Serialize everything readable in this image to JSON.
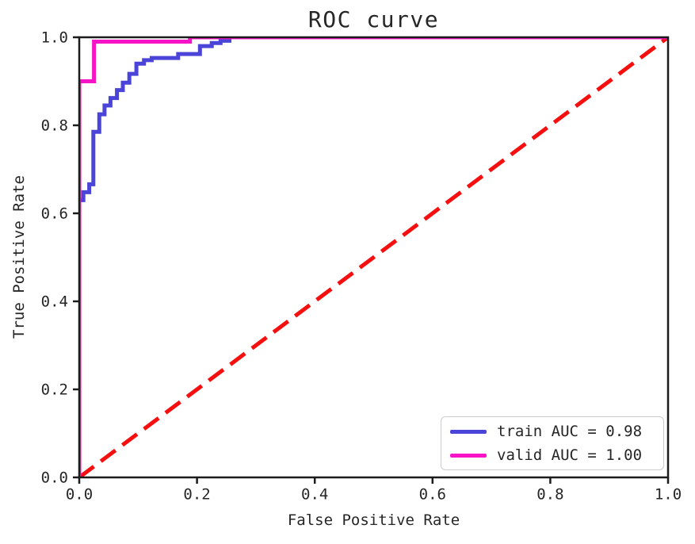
{
  "style": {
    "background": "#ffffff",
    "text_color": "#262626",
    "axis_color": "#1c1c1c",
    "legend_border_color": "#cccccc"
  },
  "chart_data": {
    "type": "line",
    "plot_kind": "roc-curve",
    "title": "ROC curve",
    "xlabel": "False Positive Rate",
    "ylabel": "True Positive Rate",
    "xlim": [
      0,
      1
    ],
    "ylim": [
      0,
      1
    ],
    "xtick_labels": [
      "0.0",
      "0.2",
      "0.4",
      "0.6",
      "0.8",
      "1.0"
    ],
    "ytick_labels": [
      "0.0",
      "0.2",
      "0.4",
      "0.6",
      "0.8",
      "1.0"
    ],
    "grid": false,
    "legend_position": "lower right",
    "legend_entries": [
      {
        "label": "train AUC = 0.98",
        "color": "#4a45d8"
      },
      {
        "label": "valid AUC = 1.00",
        "color": "#f614c6"
      }
    ],
    "series": [
      {
        "name": "chance-diagonal",
        "color": "#f50f0f",
        "dash": [
          23,
          11
        ],
        "width": 5,
        "points": [
          [
            0,
            0
          ],
          [
            1,
            1
          ]
        ]
      },
      {
        "name": "train",
        "auc": 0.98,
        "color": "#4a45d8",
        "dash": null,
        "width": 5,
        "points": [
          [
            0.0,
            0.0
          ],
          [
            0.0,
            0.63
          ],
          [
            0.007,
            0.63
          ],
          [
            0.007,
            0.648
          ],
          [
            0.017,
            0.648
          ],
          [
            0.017,
            0.666
          ],
          [
            0.024,
            0.666
          ],
          [
            0.024,
            0.785
          ],
          [
            0.034,
            0.785
          ],
          [
            0.034,
            0.825
          ],
          [
            0.043,
            0.825
          ],
          [
            0.043,
            0.845
          ],
          [
            0.053,
            0.845
          ],
          [
            0.053,
            0.862
          ],
          [
            0.064,
            0.862
          ],
          [
            0.064,
            0.88
          ],
          [
            0.074,
            0.88
          ],
          [
            0.074,
            0.897
          ],
          [
            0.085,
            0.897
          ],
          [
            0.085,
            0.917
          ],
          [
            0.097,
            0.917
          ],
          [
            0.097,
            0.94
          ],
          [
            0.11,
            0.94
          ],
          [
            0.11,
            0.948
          ],
          [
            0.123,
            0.948
          ],
          [
            0.123,
            0.953
          ],
          [
            0.168,
            0.953
          ],
          [
            0.168,
            0.962
          ],
          [
            0.205,
            0.962
          ],
          [
            0.205,
            0.98
          ],
          [
            0.225,
            0.98
          ],
          [
            0.225,
            0.987
          ],
          [
            0.24,
            0.987
          ],
          [
            0.24,
            0.992
          ],
          [
            0.255,
            0.992
          ],
          [
            0.255,
            1.0
          ],
          [
            1.0,
            1.0
          ]
        ]
      },
      {
        "name": "valid",
        "auc": 1.0,
        "color": "#f614c6",
        "dash": null,
        "width": 5,
        "points": [
          [
            0.0,
            0.0
          ],
          [
            0.0,
            0.9
          ],
          [
            0.025,
            0.9
          ],
          [
            0.025,
            0.99
          ],
          [
            0.188,
            0.99
          ],
          [
            0.188,
            1.0
          ],
          [
            1.0,
            1.0
          ]
        ]
      }
    ]
  }
}
